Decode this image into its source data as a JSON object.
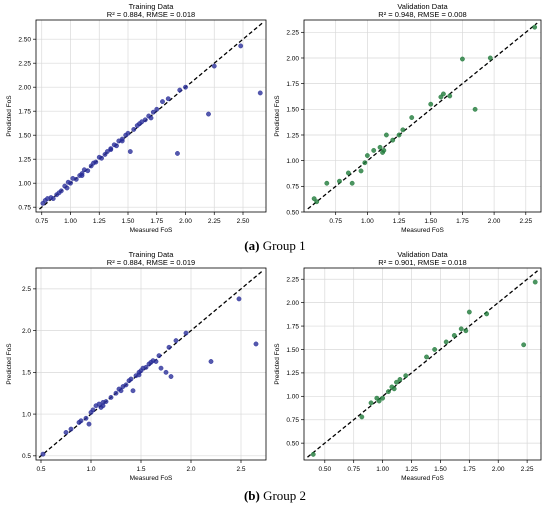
{
  "captions": [
    {
      "letter": "(a)",
      "text": "Group 1"
    },
    {
      "letter": "(b)",
      "text": "Group 2"
    }
  ],
  "colors": {
    "training": "#2b2f9a",
    "validation": "#1f7a3a",
    "ideal_line": "#000000",
    "grid": "#d9d9d9"
  },
  "chart_data": [
    {
      "type": "scatter",
      "panel": "group1-training",
      "title": "Training Data",
      "subtitle": "R² = 0.884, RMSE = 0.018",
      "xlabel": "Measured FoS",
      "ylabel": "Predicted FoS",
      "xlim": [
        0.7,
        2.7
      ],
      "ylim": [
        0.7,
        2.7
      ],
      "xticks": [
        0.75,
        1.0,
        1.25,
        1.5,
        1.75,
        2.0,
        2.25,
        2.5
      ],
      "xtick_labels": [
        "0.75",
        "1.00",
        "1.25",
        "1.50",
        "1.75",
        "2.00",
        "2.25",
        "2.50"
      ],
      "yticks": [
        0.75,
        1.0,
        1.25,
        1.5,
        1.75,
        2.0,
        2.25,
        2.5
      ],
      "ytick_labels": [
        "0.75",
        "1.00",
        "1.25",
        "1.50",
        "1.75",
        "2.00",
        "2.25",
        "2.50"
      ],
      "grid": true,
      "color": "training",
      "reference_line": "y = x (dashed)",
      "points": [
        [
          0.78,
          0.82
        ],
        [
          0.8,
          0.84
        ],
        [
          0.83,
          0.85
        ],
        [
          0.85,
          0.84
        ],
        [
          0.88,
          0.88
        ],
        [
          0.9,
          0.9
        ],
        [
          0.92,
          0.92
        ],
        [
          0.95,
          0.97
        ],
        [
          0.97,
          0.95
        ],
        [
          1.0,
          1.0
        ],
        [
          1.02,
          1.05
        ],
        [
          1.05,
          1.04
        ],
        [
          1.08,
          1.08
        ],
        [
          1.1,
          1.1
        ],
        [
          1.12,
          1.14
        ],
        [
          1.15,
          1.13
        ],
        [
          1.18,
          1.18
        ],
        [
          1.2,
          1.21
        ],
        [
          1.22,
          1.22
        ],
        [
          1.25,
          1.27
        ],
        [
          1.27,
          1.26
        ],
        [
          1.3,
          1.3
        ],
        [
          1.32,
          1.33
        ],
        [
          1.35,
          1.35
        ],
        [
          1.38,
          1.4
        ],
        [
          1.4,
          1.39
        ],
        [
          1.42,
          1.44
        ],
        [
          1.45,
          1.46
        ],
        [
          1.48,
          1.5
        ],
        [
          1.5,
          1.52
        ],
        [
          1.52,
          1.33
        ],
        [
          1.55,
          1.56
        ],
        [
          1.58,
          1.6
        ],
        [
          1.6,
          1.62
        ],
        [
          1.62,
          1.64
        ],
        [
          1.65,
          1.66
        ],
        [
          1.68,
          1.7
        ],
        [
          1.7,
          1.68
        ],
        [
          1.72,
          1.74
        ],
        [
          1.75,
          1.77
        ],
        [
          1.8,
          1.85
        ],
        [
          1.85,
          1.88
        ],
        [
          1.93,
          1.31
        ],
        [
          1.95,
          1.97
        ],
        [
          2.0,
          2.0
        ],
        [
          2.2,
          1.72
        ],
        [
          2.25,
          2.22
        ],
        [
          2.48,
          2.43
        ],
        [
          2.65,
          1.94
        ],
        [
          0.76,
          0.79
        ],
        [
          1.45,
          1.44
        ],
        [
          1.1,
          1.08
        ],
        [
          0.98,
          1.01
        ],
        [
          1.35,
          1.36
        ]
      ]
    },
    {
      "type": "scatter",
      "panel": "group1-validation",
      "title": "Validation Data",
      "subtitle": "R² = 0.948, RMSE = 0.008",
      "xlabel": "Measured FoS",
      "ylabel": "Predicted FoS",
      "xlim": [
        0.5,
        2.37
      ],
      "ylim": [
        0.5,
        2.37
      ],
      "xticks": [
        0.75,
        1.0,
        1.25,
        1.5,
        1.75,
        2.0,
        2.25
      ],
      "xtick_labels": [
        "0.75",
        "1.00",
        "1.25",
        "1.50",
        "1.75",
        "2.00",
        "2.25"
      ],
      "yticks": [
        0.5,
        0.75,
        1.0,
        1.25,
        1.5,
        1.75,
        2.0,
        2.25
      ],
      "ytick_labels": [
        "0.50",
        "0.75",
        "1.00",
        "1.25",
        "1.50",
        "1.75",
        "2.00",
        "2.25"
      ],
      "grid": true,
      "color": "validation",
      "reference_line": "y = x (dashed)",
      "points": [
        [
          0.58,
          0.63
        ],
        [
          0.6,
          0.6
        ],
        [
          0.68,
          0.78
        ],
        [
          0.78,
          0.8
        ],
        [
          0.85,
          0.88
        ],
        [
          0.88,
          0.78
        ],
        [
          0.95,
          0.9
        ],
        [
          0.98,
          0.98
        ],
        [
          1.0,
          1.05
        ],
        [
          1.05,
          1.1
        ],
        [
          1.1,
          1.13
        ],
        [
          1.12,
          1.08
        ],
        [
          1.13,
          1.1
        ],
        [
          1.15,
          1.25
        ],
        [
          1.2,
          1.2
        ],
        [
          1.25,
          1.25
        ],
        [
          1.28,
          1.3
        ],
        [
          1.35,
          1.42
        ],
        [
          1.5,
          1.55
        ],
        [
          1.58,
          1.62
        ],
        [
          1.6,
          1.65
        ],
        [
          1.65,
          1.63
        ],
        [
          1.75,
          1.99
        ],
        [
          1.85,
          1.5
        ],
        [
          1.97,
          2.0
        ],
        [
          2.32,
          2.3
        ]
      ]
    },
    {
      "type": "scatter",
      "panel": "group2-training",
      "title": "Training Data",
      "subtitle": "R² = 0.884, RMSE = 0.019",
      "xlabel": "Measured FoS",
      "ylabel": "Predicted FoS",
      "xlim": [
        0.45,
        2.75
      ],
      "ylim": [
        0.45,
        2.75
      ],
      "xticks": [
        0.5,
        1.0,
        1.5,
        2.0,
        2.5
      ],
      "xtick_labels": [
        "0.5",
        "1.0",
        "1.5",
        "2.0",
        "2.5"
      ],
      "yticks": [
        0.5,
        1.0,
        1.5,
        2.0,
        2.5
      ],
      "ytick_labels": [
        "0.5",
        "1.0",
        "1.5",
        "2.0",
        "2.5"
      ],
      "grid": true,
      "color": "training",
      "reference_line": "y = x (dashed)",
      "points": [
        [
          0.52,
          0.52
        ],
        [
          0.75,
          0.78
        ],
        [
          0.8,
          0.82
        ],
        [
          0.88,
          0.9
        ],
        [
          0.9,
          0.92
        ],
        [
          0.95,
          0.95
        ],
        [
          0.98,
          0.88
        ],
        [
          1.0,
          1.02
        ],
        [
          1.02,
          1.05
        ],
        [
          1.05,
          1.1
        ],
        [
          1.08,
          1.12
        ],
        [
          1.1,
          1.08
        ],
        [
          1.12,
          1.14
        ],
        [
          1.15,
          1.15
        ],
        [
          1.2,
          1.2
        ],
        [
          1.25,
          1.25
        ],
        [
          1.28,
          1.3
        ],
        [
          1.3,
          1.28
        ],
        [
          1.35,
          1.35
        ],
        [
          1.38,
          1.4
        ],
        [
          1.4,
          1.42
        ],
        [
          1.42,
          1.28
        ],
        [
          1.45,
          1.46
        ],
        [
          1.48,
          1.5
        ],
        [
          1.5,
          1.52
        ],
        [
          1.52,
          1.55
        ],
        [
          1.55,
          1.56
        ],
        [
          1.58,
          1.6
        ],
        [
          1.6,
          1.62
        ],
        [
          1.62,
          1.64
        ],
        [
          1.65,
          1.63
        ],
        [
          1.68,
          1.7
        ],
        [
          1.7,
          1.55
        ],
        [
          1.75,
          1.5
        ],
        [
          1.78,
          1.8
        ],
        [
          1.8,
          1.45
        ],
        [
          1.85,
          1.88
        ],
        [
          1.95,
          1.97
        ],
        [
          2.2,
          1.63
        ],
        [
          2.48,
          2.38
        ],
        [
          2.65,
          1.84
        ],
        [
          1.12,
          1.1
        ],
        [
          1.32,
          1.33
        ],
        [
          1.48,
          1.47
        ]
      ]
    },
    {
      "type": "scatter",
      "panel": "group2-validation",
      "title": "Validation Data",
      "subtitle": "R² = 0.901, RMSE = 0.018",
      "xlabel": "Measured FoS",
      "ylabel": "Predicted FoS",
      "xlim": [
        0.32,
        2.37
      ],
      "ylim": [
        0.32,
        2.37
      ],
      "xticks": [
        0.5,
        0.75,
        1.0,
        1.25,
        1.5,
        1.75,
        2.0,
        2.25
      ],
      "xtick_labels": [
        "0.50",
        "0.75",
        "1.00",
        "1.25",
        "1.50",
        "1.75",
        "2.00",
        "2.25"
      ],
      "yticks": [
        0.5,
        0.75,
        1.0,
        1.25,
        1.5,
        1.75,
        2.0,
        2.25
      ],
      "ytick_labels": [
        "0.50",
        "0.75",
        "1.00",
        "1.25",
        "1.50",
        "1.75",
        "2.00",
        "2.25"
      ],
      "grid": true,
      "color": "validation",
      "reference_line": "y = x (dashed)",
      "points": [
        [
          0.4,
          0.38
        ],
        [
          0.82,
          0.78
        ],
        [
          0.9,
          0.93
        ],
        [
          0.95,
          0.98
        ],
        [
          0.97,
          0.95
        ],
        [
          1.0,
          0.98
        ],
        [
          1.05,
          1.05
        ],
        [
          1.08,
          1.1
        ],
        [
          1.1,
          1.08
        ],
        [
          1.12,
          1.15
        ],
        [
          1.15,
          1.18
        ],
        [
          1.2,
          1.22
        ],
        [
          1.38,
          1.42
        ],
        [
          1.45,
          1.5
        ],
        [
          1.55,
          1.58
        ],
        [
          1.62,
          1.65
        ],
        [
          1.68,
          1.72
        ],
        [
          1.72,
          1.7
        ],
        [
          1.75,
          1.9
        ],
        [
          1.9,
          1.88
        ],
        [
          2.22,
          1.55
        ],
        [
          2.32,
          2.22
        ]
      ]
    }
  ]
}
